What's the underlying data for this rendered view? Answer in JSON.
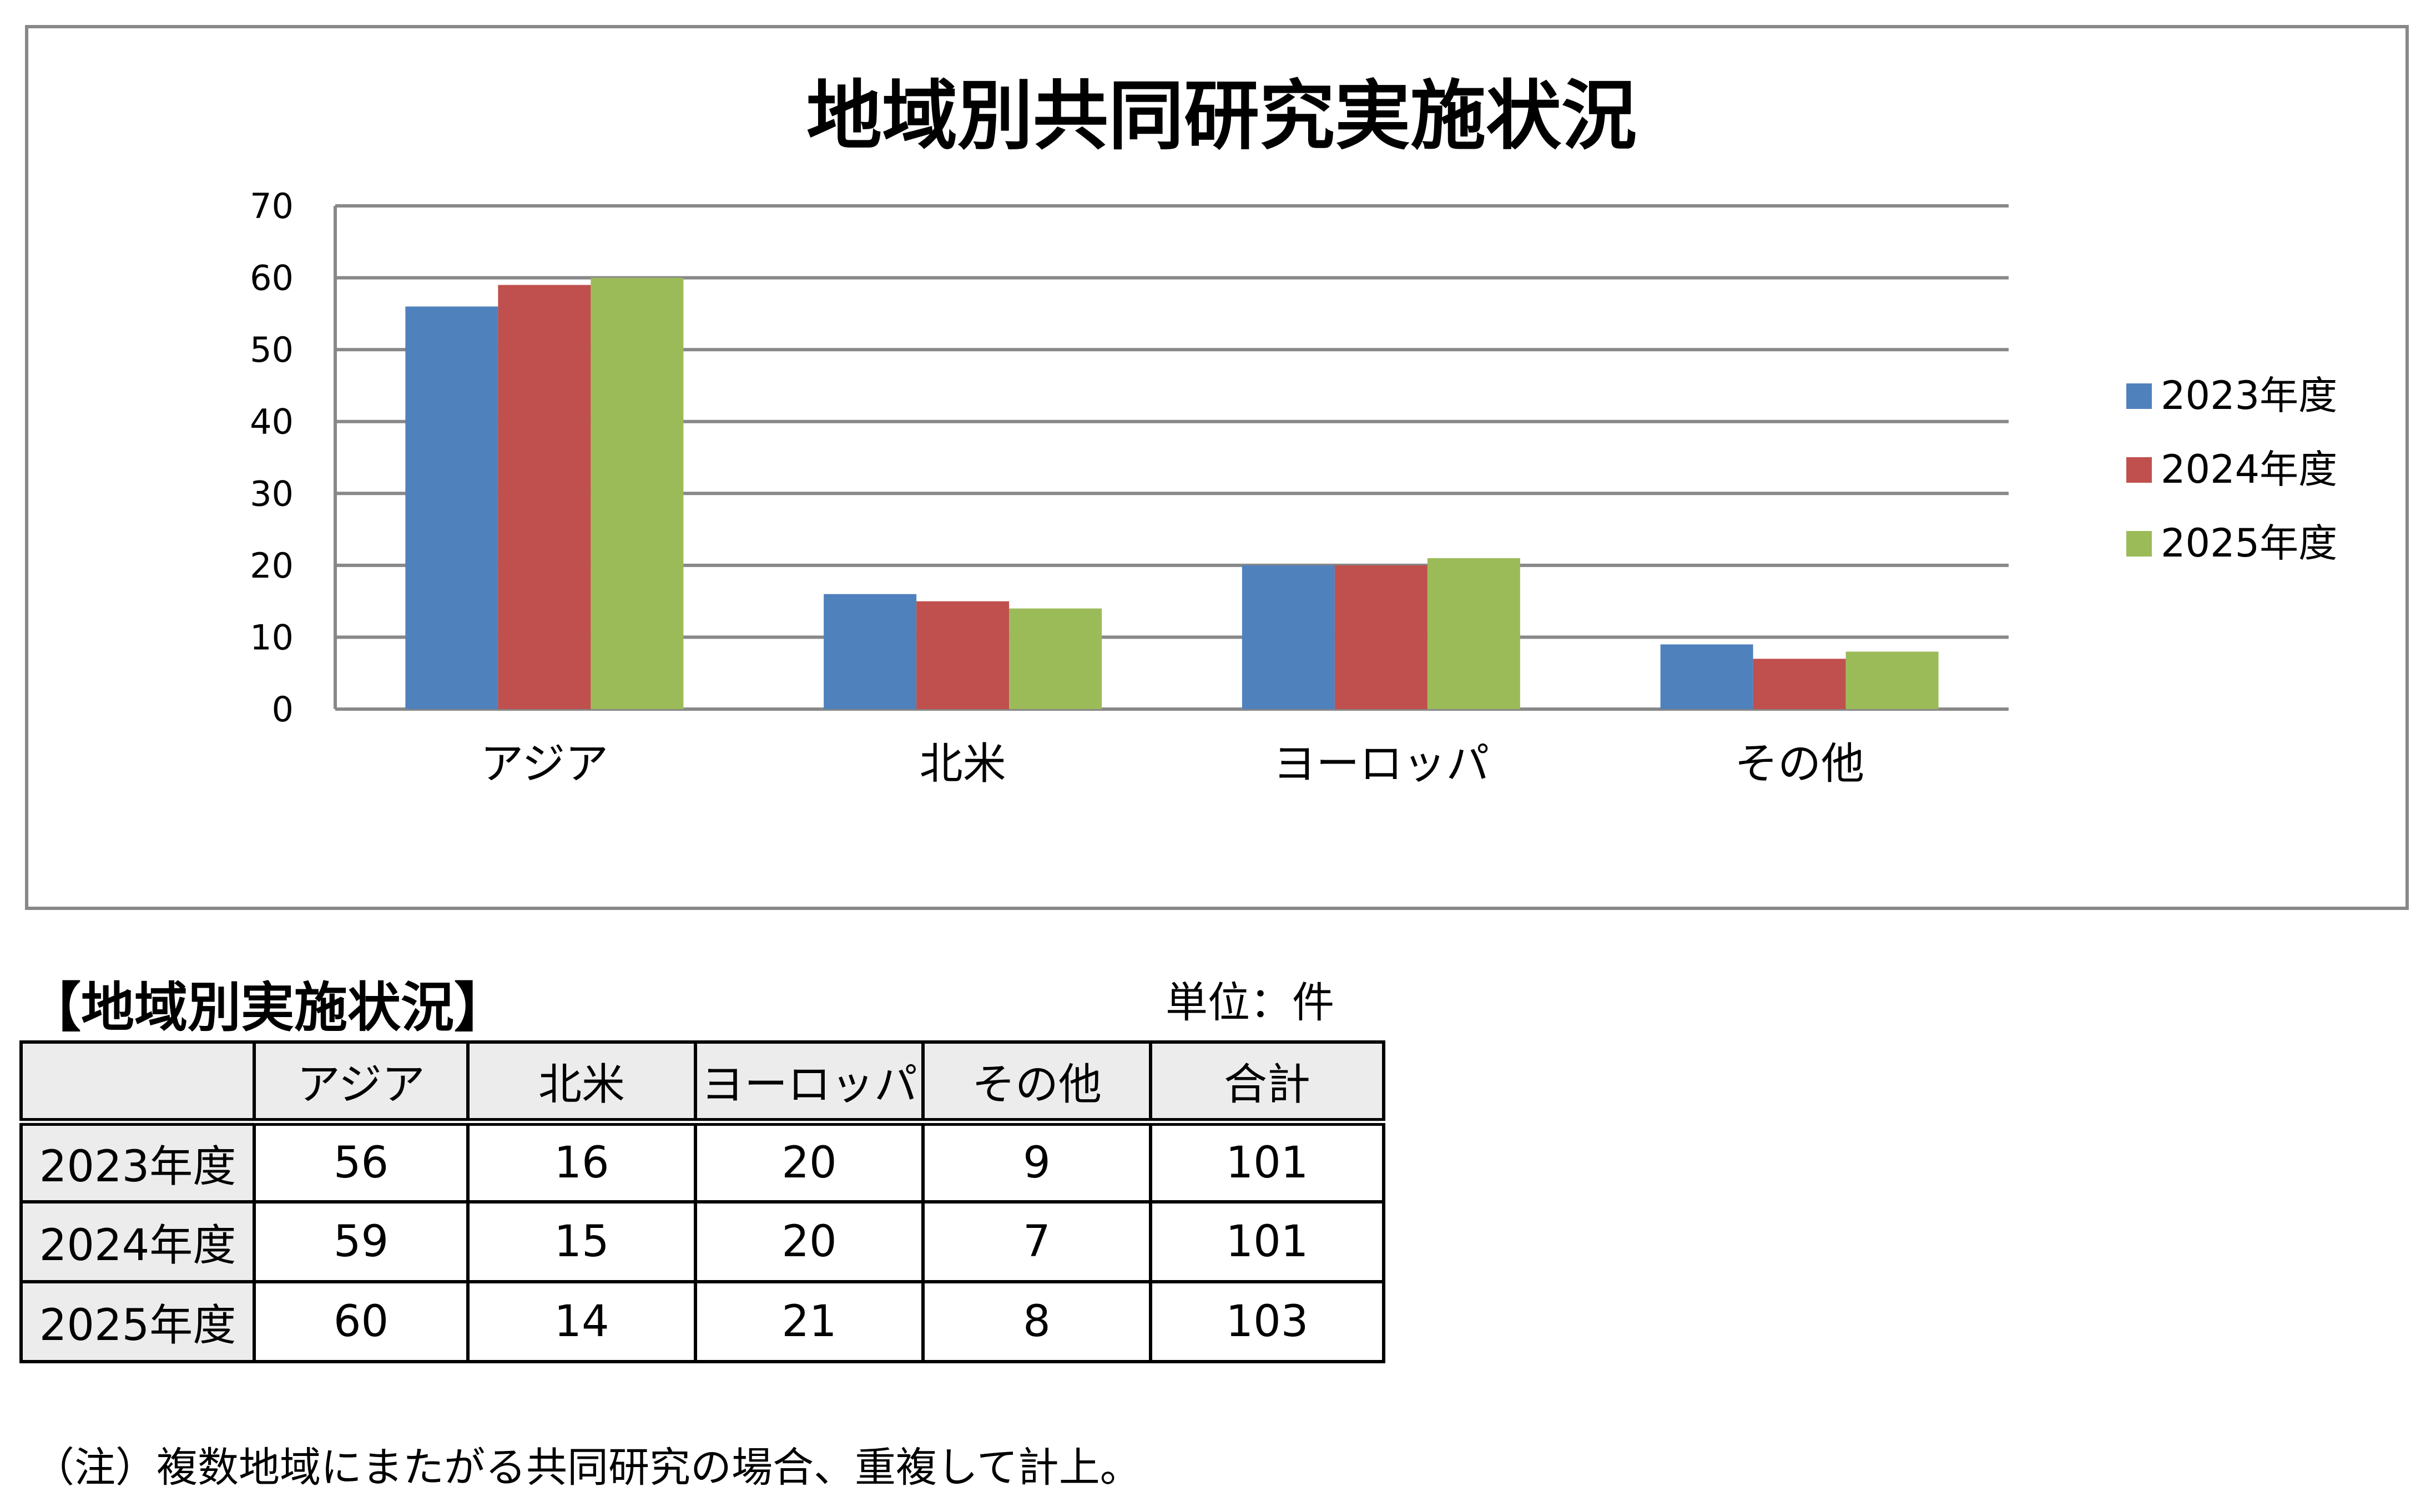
{
  "chart_data": {
    "type": "bar",
    "title": "地域別共同研究実施状況",
    "categories": [
      "アジア",
      "北米",
      "ヨーロッパ",
      "その他"
    ],
    "series": [
      {
        "name": "2023年度",
        "values": [
          56,
          16,
          20,
          9
        ],
        "color": "#4f81bd"
      },
      {
        "name": "2024年度",
        "values": [
          59,
          15,
          20,
          7
        ],
        "color": "#c0504d"
      },
      {
        "name": "2025年度",
        "values": [
          60,
          14,
          21,
          8
        ],
        "color": "#9bbb59"
      }
    ],
    "ylim": [
      0,
      70
    ],
    "yticks": [
      0,
      10,
      20,
      30,
      40,
      50,
      60,
      70
    ],
    "grid": true,
    "legend_position": "right"
  },
  "table": {
    "title": "【地域別実施状況】",
    "unit": "単位：件",
    "headers": [
      "",
      "アジア",
      "北米",
      "ヨーロッパ",
      "その他",
      "合計"
    ],
    "rows": [
      {
        "label": "2023年度",
        "cells": [
          "56",
          "16",
          "20",
          "9",
          "101"
        ]
      },
      {
        "label": "2024年度",
        "cells": [
          "59",
          "15",
          "20",
          "7",
          "101"
        ]
      },
      {
        "label": "2025年度",
        "cells": [
          "60",
          "14",
          "21",
          "8",
          "103"
        ]
      }
    ]
  },
  "footnote": "（注）複数地域にまたがる共同研究の場合、重複して計上。"
}
